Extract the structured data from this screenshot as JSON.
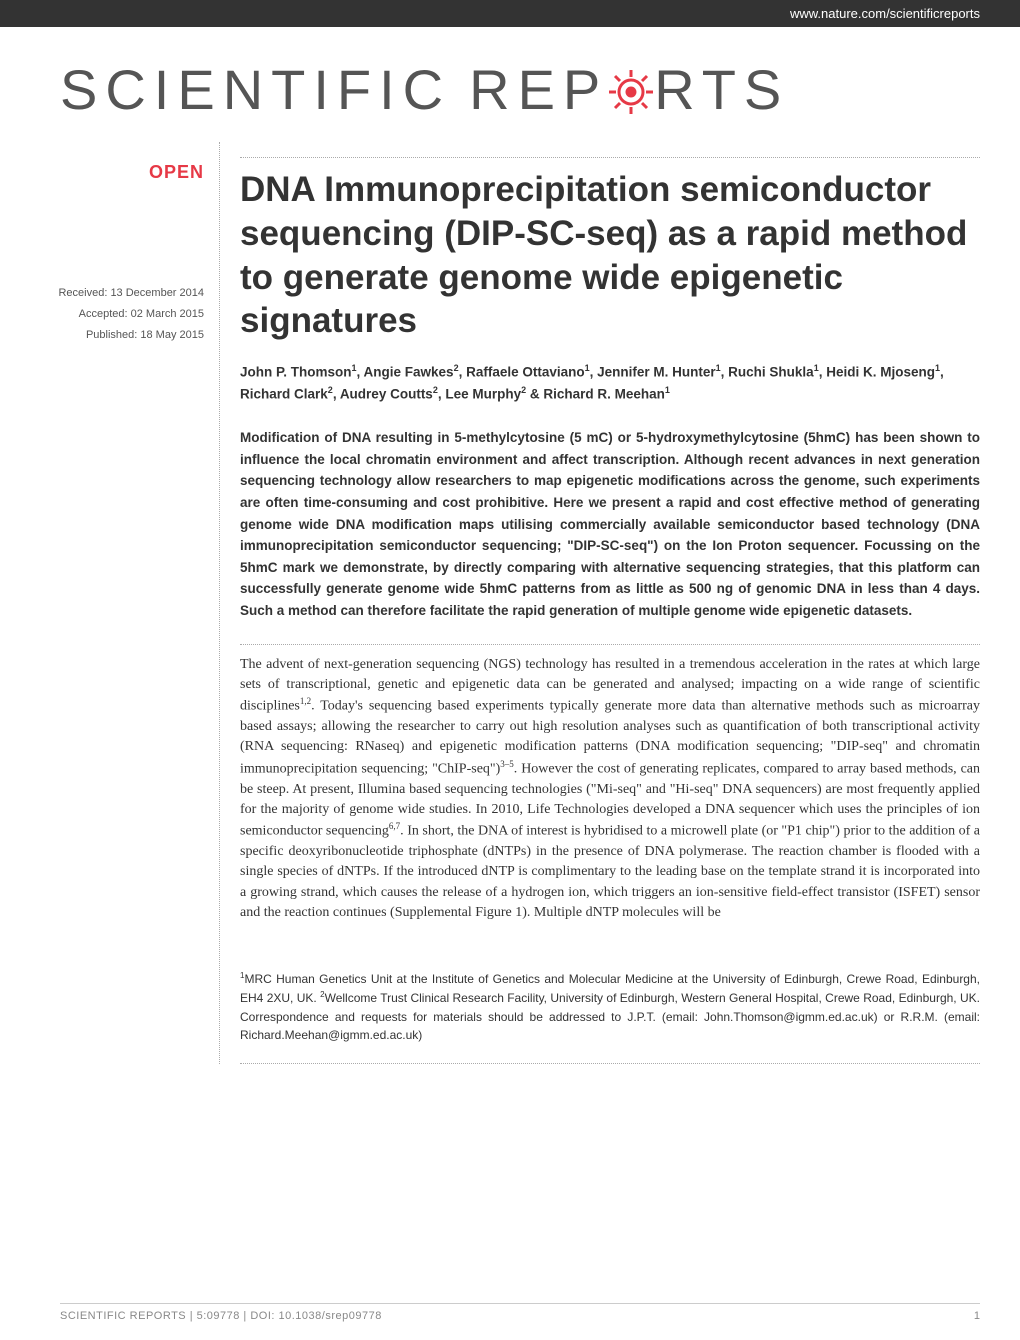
{
  "header": {
    "url": "www.nature.com/scientificreports"
  },
  "logo": {
    "part1": "SCIENTIFIC",
    "part2": "REP",
    "part3": "RTS",
    "gear_color": "#e63946"
  },
  "sidebar": {
    "open_badge": "OPEN",
    "received": "Received: 13 December 2014",
    "accepted": "Accepted: 02 March 2015",
    "published": "Published: 18 May 2015"
  },
  "article": {
    "title": "DNA Immunoprecipitation semiconductor sequencing (DIP-SC-seq) as a rapid method to generate genome wide epigenetic signatures",
    "authors_html": "John P. Thomson<sup>1</sup>, Angie Fawkes<sup>2</sup>, Raffaele Ottaviano<sup>1</sup>, Jennifer M. Hunter<sup>1</sup>, Ruchi Shukla<sup>1</sup>, Heidi K. Mjoseng<sup>1</sup>, Richard Clark<sup>2</sup>, Audrey Coutts<sup>2</sup>, Lee Murphy<sup>2</sup> & Richard R. Meehan<sup>1</sup>",
    "abstract": "Modification of DNA resulting in 5-methylcytosine (5 mC) or 5-hydroxymethylcytosine (5hmC) has been shown to influence the local chromatin environment and affect transcription. Although recent advances in next generation sequencing technology allow researchers to map epigenetic modifications across the genome, such experiments are often time-consuming and cost prohibitive. Here we present a rapid and cost effective method of generating genome wide DNA modification maps utilising commercially available semiconductor based technology (DNA immunoprecipitation semiconductor sequencing; \"DIP-SC-seq\") on the Ion Proton sequencer. Focussing on the 5hmC mark we demonstrate, by directly comparing with alternative sequencing strategies, that this platform can successfully generate genome wide 5hmC patterns from as little as 500 ng of genomic DNA in less than 4 days. Such a method can therefore facilitate the rapid generation of multiple genome wide epigenetic datasets.",
    "body_html": "The advent of next-generation sequencing (NGS) technology has resulted in a tremendous acceleration in the rates at which large sets of transcriptional, genetic and epigenetic data can be generated and analysed; impacting on a wide range of scientific disciplines<sup>1,2</sup>. Today's sequencing based experiments typically generate more data than alternative methods such as microarray based assays; allowing the researcher to carry out high resolution analyses such as quantification of both transcriptional activity (RNA sequencing: RNaseq) and epigenetic modification patterns (DNA modification sequencing; \"DIP-seq\" and chromatin immunoprecipitation sequencing; \"ChIP-seq\")<sup>3–5</sup>. However the cost of generating replicates, compared to array based methods, can be steep. At present, Illumina based sequencing technologies (\"Mi-seq\" and \"Hi-seq\" DNA sequencers) are most frequently applied for the majority of genome wide studies. In 2010, Life Technologies developed a DNA sequencer which uses the principles of ion semiconductor sequencing<sup>6,7</sup>. In short, the DNA of interest is hybridised to a microwell plate (or \"P1 chip\") prior to the addition of a specific deoxyribonucleotide triphosphate (dNTPs) in the presence of DNA polymerase. The reaction chamber is flooded with a single species of dNTPs. If the introduced dNTP is complimentary to the leading base on the template strand it is incorporated into a growing strand, which causes the release of a hydrogen ion, which triggers an ion-sensitive field-effect transistor (ISFET) sensor and the reaction continues (Supplemental Figure 1). Multiple dNTP molecules will be",
    "affiliations_html": "<sup>1</sup>MRC Human Genetics Unit at the Institute of Genetics and Molecular Medicine at the University of Edinburgh, Crewe Road, Edinburgh, EH4 2XU, UK. <sup>2</sup>Wellcome Trust Clinical Research Facility, University of Edinburgh, Western General Hospital, Crewe Road, Edinburgh, UK. Correspondence and requests for materials should be addressed to J.P.T. (email: John.Thomson@igmm.ed.ac.uk) or R.R.M. (email: Richard.Meehan@igmm.ed.ac.uk)"
  },
  "footer": {
    "citation": "SCIENTIFIC REPORTS | 5:09778 | DOI: 10.1038/srep09778",
    "page": "1"
  },
  "colors": {
    "accent": "#e63946",
    "text": "#333333",
    "header_bg": "#333333",
    "footer_text": "#888888"
  }
}
